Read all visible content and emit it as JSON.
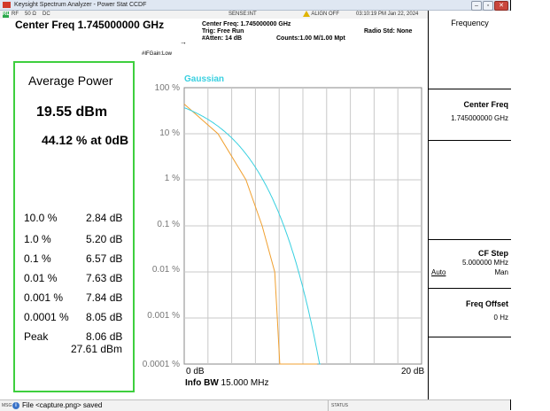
{
  "window": {
    "title": "Keysight Spectrum Analyzer - Power Stat CCDF",
    "minimize": "–",
    "restore": "▫",
    "close": "✕"
  },
  "statusbar": {
    "mode_badge": "RL",
    "rf": "RF",
    "impedance": "50 Ω",
    "coupling": "DC",
    "sense": "SENSE:INT",
    "align": "ALIGN OFF",
    "datetime": "03:10:19 PM Jan 22, 2024"
  },
  "header": {
    "center_freq_label": "Center Freq 1.745000000 GHz",
    "settings": [
      "Center Freq: 1.745000000 GHz",
      "Trig: Free Run",
      "#Atten: 14 dB"
    ],
    "counts": "Counts:1.00 M/1.00 Mpt",
    "radio_std": "Radio Std: None",
    "if_gain": "#IFGain:Low"
  },
  "metrics": {
    "title": "Average Power",
    "avg_power": "19.55 dBm",
    "pct_at_0db": "44.12 % at 0dB",
    "rows": [
      {
        "k": "10.0 %",
        "v": "2.84 dB"
      },
      {
        "k": "1.0 %",
        "v": "5.20 dB"
      },
      {
        "k": "0.1 %",
        "v": "6.57 dB"
      },
      {
        "k": "0.01 %",
        "v": "7.63 dB"
      },
      {
        "k": "0.001 %",
        "v": "7.84 dB"
      },
      {
        "k": "0.0001 %",
        "v": "8.05 dB"
      },
      {
        "k": "Peak",
        "v": "8.06 dB"
      }
    ],
    "peak_dbm": "27.61 dBm"
  },
  "plot": {
    "y_labels": [
      "100 %",
      "10 %",
      "1 %",
      "0.1 %",
      "0.01 %",
      "0.001 %",
      "0.0001 %"
    ],
    "legend": "Gaussian",
    "x_left": "0 dB",
    "x_right": "20 dB",
    "info_bw_label": "Info BW",
    "info_bw_value": "15.000 MHz",
    "gaussian_color": "#38d0e0",
    "measured_color": "#f0a030"
  },
  "softkeys": {
    "title": "Frequency",
    "center_freq": {
      "name": "Center Freq",
      "value": "1.745000000 GHz"
    },
    "cf_step": {
      "name": "CF Step",
      "value": "5.000000 MHz",
      "auto": "Auto",
      "man": "Man"
    },
    "freq_offset": {
      "name": "Freq Offset",
      "value": "0 Hz"
    }
  },
  "messagebar": {
    "msg": "MSG",
    "info_icon": "i",
    "text": "File <capture.png> saved",
    "status": "STATUS"
  }
}
